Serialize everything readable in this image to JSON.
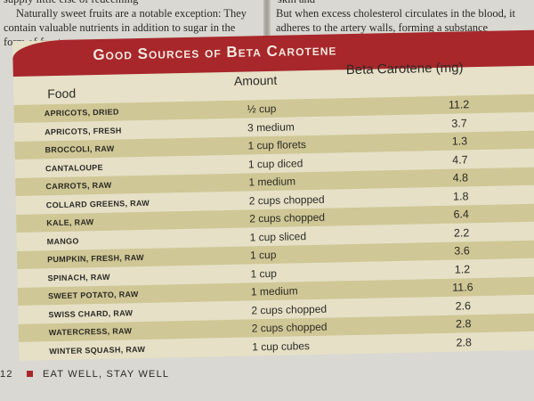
{
  "left_text": [
    "supply little else of redeeming",
    "Naturally sweet fruits are a notable exception: They",
    "contain valuable nutrients in addition to sugar in the",
    "form of fructose or sucrose."
  ],
  "right_text": [
    "skin and",
    "But when excess cholesterol circulates in the blood, it",
    "adheres to the artery walls, forming a substance"
  ],
  "table": {
    "title": "Good Sources of Beta Carotene",
    "headers": [
      "Food",
      "Amount",
      "Beta Carotene (mg)"
    ],
    "rows": [
      [
        "APRICOTS, DRIED",
        "½ cup",
        "11.2"
      ],
      [
        "APRICOTS, FRESH",
        "3 medium",
        "3.7"
      ],
      [
        "BROCCOLI, RAW",
        "1 cup florets",
        "1.3"
      ],
      [
        "CANTALOUPE",
        "1 cup diced",
        "4.7"
      ],
      [
        "CARROTS, RAW",
        "1 medium",
        "4.8"
      ],
      [
        "COLLARD GREENS, RAW",
        "2 cups chopped",
        "1.8"
      ],
      [
        "KALE, RAW",
        "2 cups chopped",
        "6.4"
      ],
      [
        "MANGO",
        "1 cup sliced",
        "2.2"
      ],
      [
        "PUMPKIN, FRESH, RAW",
        "1 cup",
        "3.6"
      ],
      [
        "SPINACH, RAW",
        "1 cup",
        "1.2"
      ],
      [
        "SWEET POTATO, RAW",
        "1 medium",
        "11.6"
      ],
      [
        "SWISS CHARD, RAW",
        "2 cups chopped",
        "2.6"
      ],
      [
        "WATERCRESS, RAW",
        "2 cups chopped",
        "2.8"
      ],
      [
        "WINTER SQUASH, RAW",
        "1 cup cubes",
        "2.8"
      ]
    ]
  },
  "footer": {
    "page": "12",
    "text": "EAT WELL, STAY WELL"
  }
}
